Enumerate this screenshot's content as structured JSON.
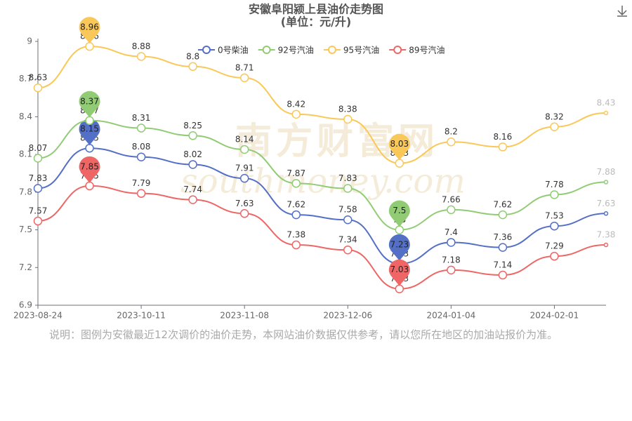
{
  "chart_data": {
    "type": "line",
    "title": "安徽阜阳颍上县油价走势图",
    "subtitle": "(单位：元/升)",
    "categories": [
      "2023-08-24",
      null,
      "2023-10-11",
      null,
      "2023-11-08",
      null,
      "2023-12-06",
      null,
      "2024-01-04",
      null,
      "2024-02-01",
      null
    ],
    "series": [
      {
        "name": "0号柴油",
        "color": "#5470c6",
        "values": [
          7.83,
          8.15,
          8.08,
          8.02,
          7.91,
          7.62,
          7.58,
          7.23,
          7.4,
          7.36,
          7.53,
          7.63
        ]
      },
      {
        "name": "92号汽油",
        "color": "#91cc75",
        "values": [
          8.07,
          8.37,
          8.31,
          8.25,
          8.14,
          7.87,
          7.83,
          7.5,
          7.66,
          7.62,
          7.78,
          7.88
        ]
      },
      {
        "name": "95号汽油",
        "color": "#fac858",
        "values": [
          8.63,
          8.96,
          8.88,
          8.8,
          8.71,
          8.42,
          8.38,
          8.03,
          8.2,
          8.16,
          8.32,
          8.43
        ]
      },
      {
        "name": "89号汽油",
        "color": "#ee6666",
        "values": [
          7.57,
          7.85,
          7.79,
          7.74,
          7.63,
          7.38,
          7.34,
          7.03,
          7.18,
          7.14,
          7.29,
          7.38
        ]
      }
    ],
    "ylim": [
      6.9,
      9
    ],
    "yticks": [
      6.9,
      7.2,
      7.5,
      7.8,
      8.1,
      8.4,
      8.7,
      9
    ],
    "legend": "top",
    "smooth": true,
    "watermark": [
      "南方财富网",
      "southmoney.com"
    ],
    "note": "说明：图例为安徽最近12次调价的油价走势，本网站油价数据仅供参考，请以您所在地区的加油站报价为准。"
  }
}
